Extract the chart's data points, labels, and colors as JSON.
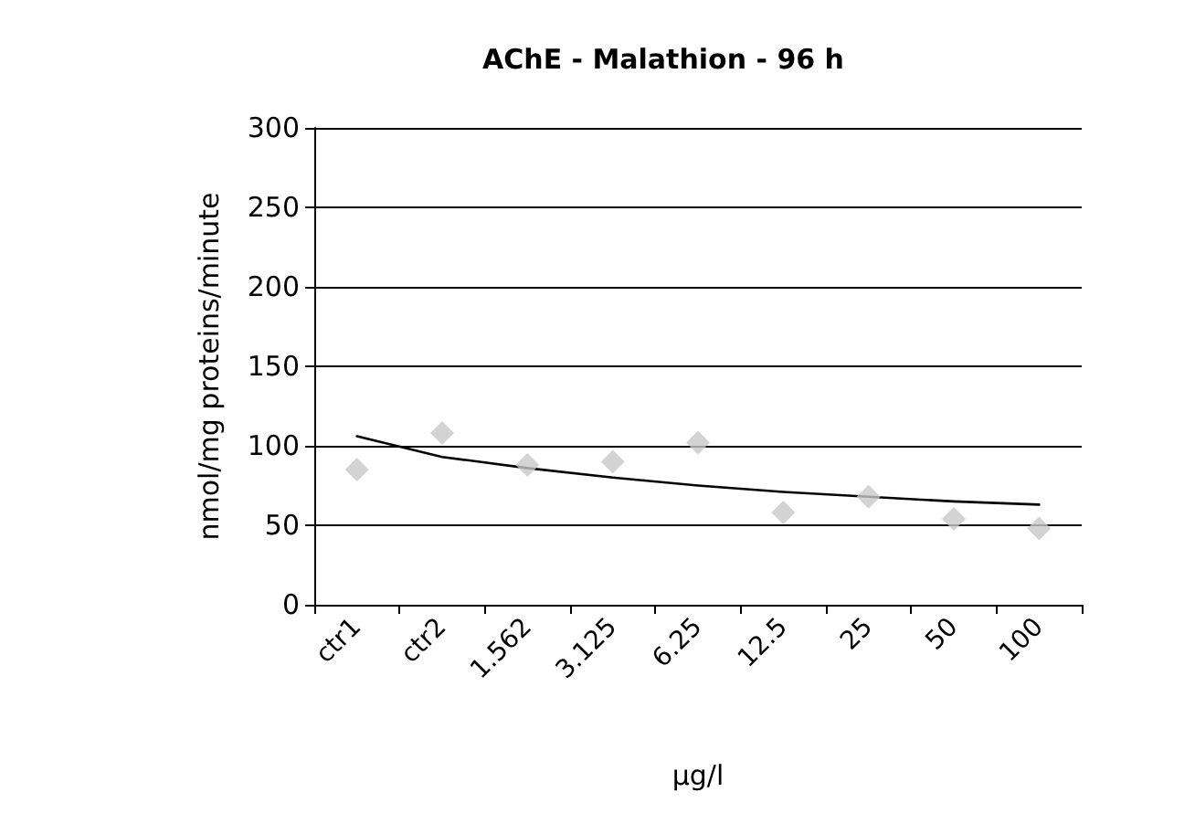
{
  "chart_data": {
    "type": "scatter",
    "title": "AChE - Malathion - 96 h",
    "xlabel": "µg/l",
    "ylabel": "nmol/mg proteins/minute",
    "categories": [
      "ctr1",
      "ctr2",
      "1.562",
      "3.125",
      "6.25",
      "12.5",
      "25",
      "50",
      "100"
    ],
    "series": [
      {
        "color": "#c8c8c8",
        "marker": "diamond",
        "values": [
          85,
          108,
          88,
          90,
          102,
          58,
          68,
          54,
          48
        ]
      },
      {
        "type": "line",
        "color": "#000000",
        "marker": "none",
        "line_style": "solid",
        "values": [
          106,
          93,
          86,
          80,
          75,
          71,
          68,
          65,
          63
        ]
      }
    ],
    "ylim": [
      0,
      300
    ],
    "yticks": [
      0,
      50,
      100,
      150,
      200,
      250,
      300
    ],
    "grid": "y"
  }
}
